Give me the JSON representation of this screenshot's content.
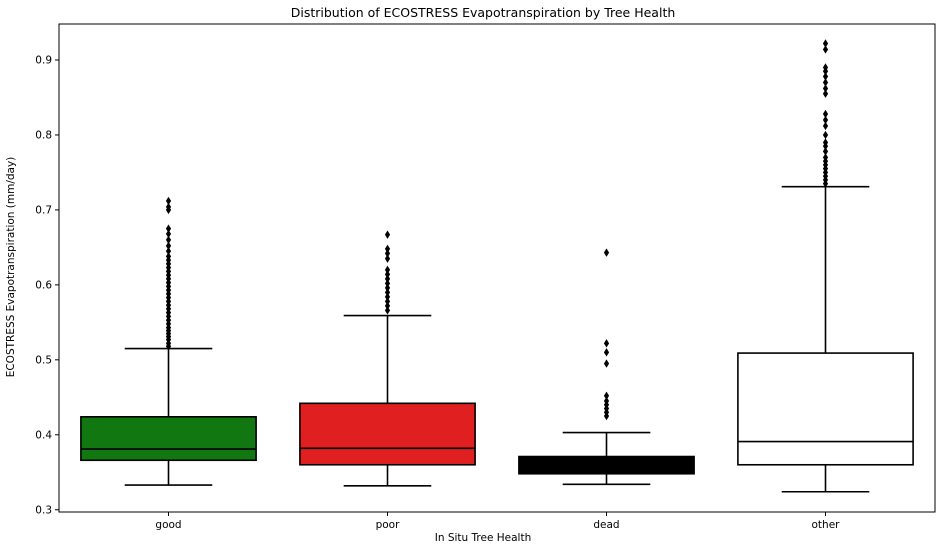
{
  "chart_data": {
    "type": "box",
    "title": "Distribution of ECOSTRESS Evapotranspiration by Tree Health",
    "xlabel": "In Situ Tree Health",
    "ylabel": "ECOSTRESS Evapotranspiration (mm/day)",
    "ylim": [
      0.297,
      0.948
    ],
    "yticks": [
      "0.3",
      "0.4",
      "0.5",
      "0.6",
      "0.7",
      "0.8",
      "0.9"
    ],
    "grid": false,
    "categories": [
      "good",
      "poor",
      "dead",
      "other"
    ],
    "boxes": [
      {
        "category": "good",
        "color": "#117711",
        "whisker_low": 0.333,
        "q1": 0.366,
        "median": 0.381,
        "q3": 0.424,
        "whisker_high": 0.515,
        "outliers": [
          0.518,
          0.522,
          0.527,
          0.531,
          0.535,
          0.539,
          0.543,
          0.548,
          0.553,
          0.558,
          0.563,
          0.568,
          0.573,
          0.578,
          0.583,
          0.588,
          0.593,
          0.598,
          0.603,
          0.608,
          0.613,
          0.618,
          0.623,
          0.628,
          0.633,
          0.638,
          0.645,
          0.652,
          0.66,
          0.668,
          0.675,
          0.7,
          0.704,
          0.712
        ]
      },
      {
        "category": "poor",
        "color": "#e02020",
        "whisker_low": 0.332,
        "q1": 0.36,
        "median": 0.382,
        "q3": 0.442,
        "whisker_high": 0.559,
        "outliers": [
          0.566,
          0.572,
          0.578,
          0.584,
          0.59,
          0.596,
          0.602,
          0.608,
          0.614,
          0.62,
          0.635,
          0.642,
          0.648,
          0.667
        ]
      },
      {
        "category": "dead",
        "color": "#000000",
        "whisker_low": 0.334,
        "q1": 0.348,
        "median": 0.357,
        "q3": 0.371,
        "whisker_high": 0.403,
        "outliers": [
          0.425,
          0.43,
          0.435,
          0.44,
          0.445,
          0.452,
          0.495,
          0.51,
          0.522,
          0.643
        ]
      },
      {
        "category": "other",
        "color": "#ffffff",
        "whisker_low": 0.324,
        "q1": 0.36,
        "median": 0.391,
        "q3": 0.509,
        "whisker_high": 0.731,
        "outliers": [
          0.735,
          0.74,
          0.745,
          0.75,
          0.755,
          0.76,
          0.765,
          0.77,
          0.778,
          0.785,
          0.79,
          0.8,
          0.812,
          0.82,
          0.828,
          0.855,
          0.862,
          0.87,
          0.878,
          0.885,
          0.89,
          0.914,
          0.922
        ]
      }
    ]
  }
}
